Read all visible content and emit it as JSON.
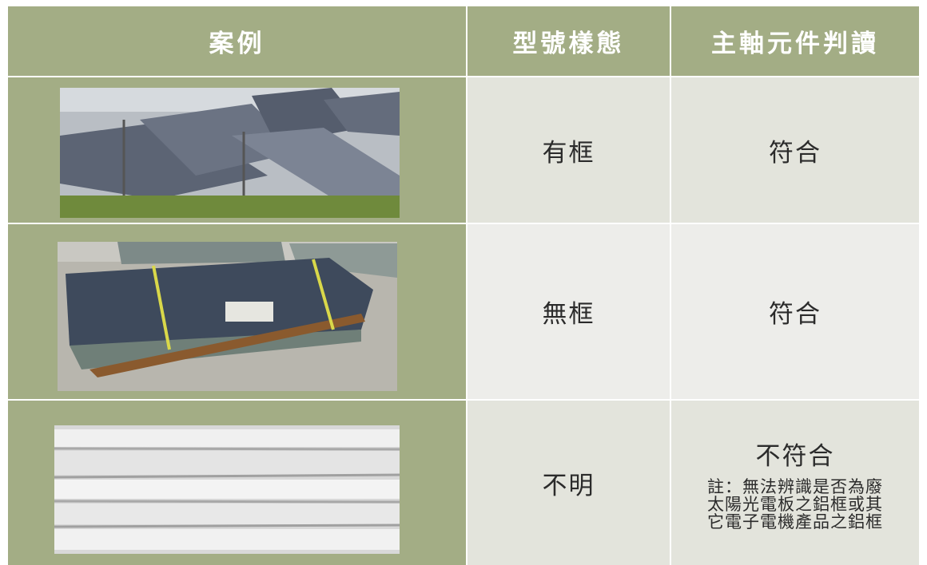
{
  "header": [
    "案例",
    "型號樣態",
    "主軸元件判讀"
  ],
  "rows": [
    {
      "type": "有框",
      "result": "符合"
    },
    {
      "type": "無框",
      "result": "符合"
    },
    {
      "type": "不明",
      "result": "不符合",
      "note": [
        "註：無法辨識是否為廢",
        "太陽光電板之鋁框或其",
        "它電子電機產品之鋁框"
      ]
    }
  ]
}
